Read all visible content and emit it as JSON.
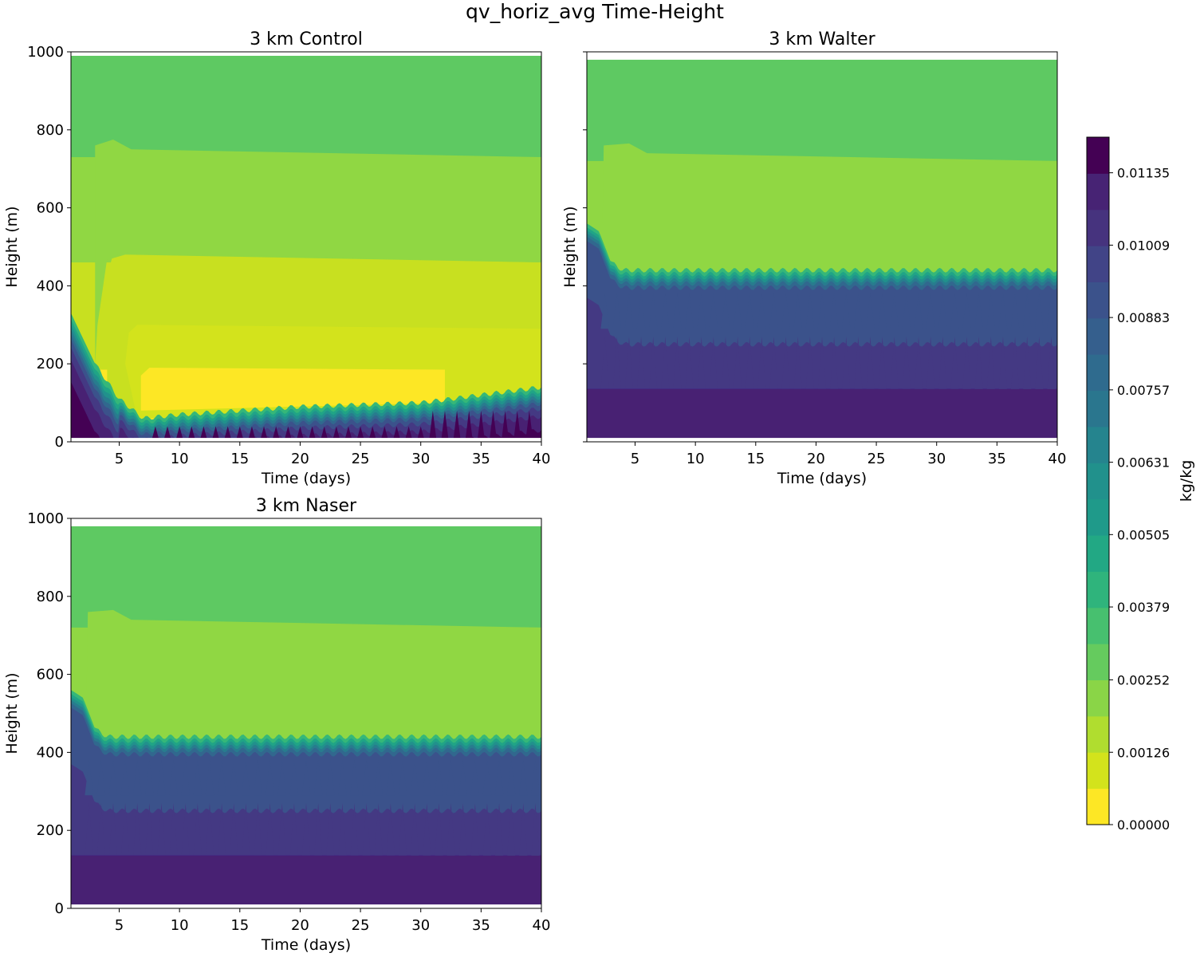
{
  "figure_title": "qv_horiz_avg Time-Height",
  "colors": {
    "levels": [
      "#fde725",
      "#c8e020",
      "#90d743",
      "#5ec962",
      "#35b779",
      "#20a486",
      "#21918c",
      "#287c8e",
      "#31688e",
      "#3b528b",
      "#443983",
      "#482173",
      "#440154"
    ],
    "background": "#ffffff"
  },
  "colorbar": {
    "label": "kg/kg",
    "ticks": [
      "0.00000",
      "0.00126",
      "0.00252",
      "0.00379",
      "0.00505",
      "0.00631",
      "0.00757",
      "0.00883",
      "0.01009",
      "0.01135"
    ],
    "levels": 19,
    "vmin": 0.0,
    "vmax": 0.01197
  },
  "chart_data": [
    {
      "type": "heatmap",
      "title": "3 km Control",
      "xlabel": "Time (days)",
      "ylabel": "Height (m)",
      "xlim": [
        1,
        40
      ],
      "ylim": [
        0,
        1000
      ],
      "xticks": [
        "5",
        "10",
        "15",
        "20",
        "25",
        "30",
        "35",
        "40"
      ],
      "yticks": [
        "0",
        "200",
        "400",
        "600",
        "800",
        "1000"
      ],
      "show_ytick_labels": true,
      "model_top_m": 990,
      "bands": [
        {
          "top_m": 990,
          "level_index": 3
        },
        {
          "top_m": 730,
          "level_index": 2
        },
        {
          "top_m": 460,
          "level_index": 1
        },
        {
          "top_m": 290,
          "level_index": 1
        },
        {
          "top_m": 185,
          "level_index": 0
        }
      ],
      "boundary_layer_top_m": [
        {
          "day": 1,
          "height": 330
        },
        {
          "day": 3,
          "height": 200
        },
        {
          "day": 5,
          "height": 110
        },
        {
          "day": 7,
          "height": 60
        },
        {
          "day": 10,
          "height": 70
        },
        {
          "day": 20,
          "height": 90
        },
        {
          "day": 30,
          "height": 100
        },
        {
          "day": 40,
          "height": 140
        }
      ]
    },
    {
      "type": "heatmap",
      "title": "3 km Walter",
      "xlabel": "Time (days)",
      "ylabel": "Height (m)",
      "xlim": [
        1,
        40
      ],
      "ylim": [
        0,
        1000
      ],
      "xticks": [
        "5",
        "10",
        "15",
        "20",
        "25",
        "30",
        "35",
        "40"
      ],
      "yticks": [],
      "show_ytick_labels": false,
      "model_top_m": 980,
      "bands": [
        {
          "top_m": 980,
          "level_index": 3
        },
        {
          "top_m": 720,
          "level_index": 2
        }
      ],
      "boundary_layer_top_m": [
        {
          "day": 1,
          "height": 520
        },
        {
          "day": 2,
          "height": 500
        },
        {
          "day": 3,
          "height": 420
        },
        {
          "day": 4,
          "height": 400
        },
        {
          "day": 40,
          "height": 400
        }
      ]
    },
    {
      "type": "heatmap",
      "title": "3 km Naser",
      "xlabel": "Time (days)",
      "ylabel": "Height (m)",
      "xlim": [
        1,
        40
      ],
      "ylim": [
        0,
        1000
      ],
      "xticks": [
        "5",
        "10",
        "15",
        "20",
        "25",
        "30",
        "35",
        "40"
      ],
      "yticks": [
        "0",
        "200",
        "400",
        "600",
        "800",
        "1000"
      ],
      "show_ytick_labels": true,
      "model_top_m": 980,
      "bands": [
        {
          "top_m": 980,
          "level_index": 3
        },
        {
          "top_m": 720,
          "level_index": 2
        }
      ],
      "boundary_layer_top_m": [
        {
          "day": 1,
          "height": 520
        },
        {
          "day": 2,
          "height": 500
        },
        {
          "day": 3,
          "height": 420
        },
        {
          "day": 4,
          "height": 400
        },
        {
          "day": 40,
          "height": 400
        }
      ]
    }
  ]
}
